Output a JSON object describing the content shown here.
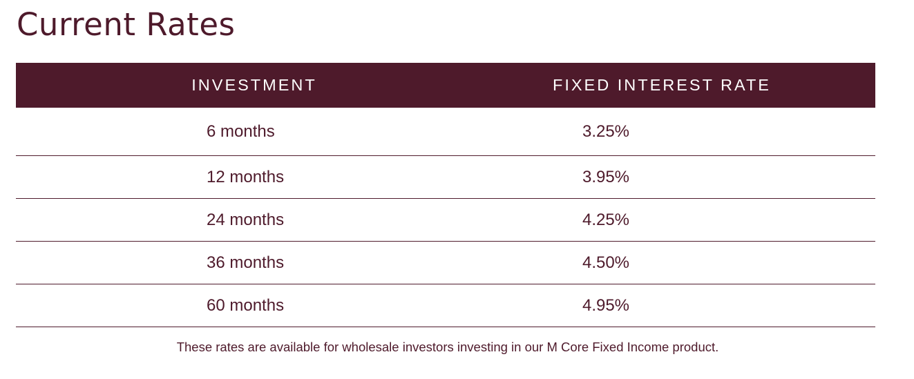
{
  "title": "Current Rates",
  "table": {
    "headers": {
      "investment": "INVESTMENT",
      "rate": "FIXED INTEREST RATE"
    },
    "rows": [
      {
        "investment": "6 months",
        "rate": "3.25%"
      },
      {
        "investment": "12 months",
        "rate": "3.95%"
      },
      {
        "investment": "24 months",
        "rate": "4.25%"
      },
      {
        "investment": "36 months",
        "rate": "4.50%"
      },
      {
        "investment": "60 months",
        "rate": "4.95%"
      }
    ]
  },
  "footnote": "These rates are available for wholesale investors investing in our M Core Fixed Income product.",
  "colors": {
    "brand": "#4e1a2b",
    "header_text": "#ffffff",
    "background": "#ffffff"
  }
}
